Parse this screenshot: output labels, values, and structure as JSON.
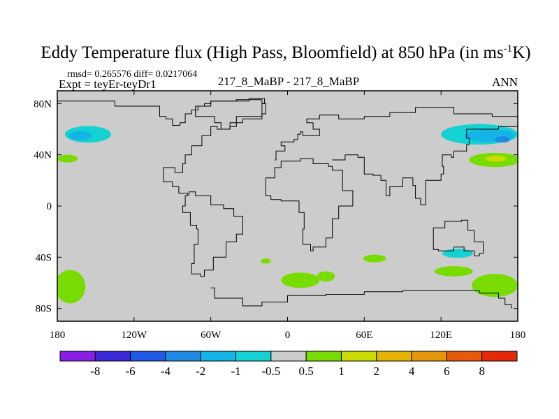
{
  "chart_data": {
    "type": "heatmap",
    "title": "Eddy Temperature flux (High Pass, Bloomfield) at 850 hPa (in ms",
    "title_superscript": "-1",
    "title_suffix": "K)",
    "stats_text": "rmsd= 0.265576  diff= 0.0217064",
    "left_label": "Expt = teyEr-teyDr1",
    "center_label": "217_8_MaBP - 217_8_MaBP",
    "right_label": "ANN",
    "x_ticks": [
      "180",
      "120W",
      "60W",
      "0",
      "60E",
      "120E",
      "180"
    ],
    "x_tick_values": [
      -180,
      -120,
      -60,
      0,
      60,
      120,
      180
    ],
    "y_ticks": [
      "80N",
      "40N",
      "0",
      "40S",
      "80S"
    ],
    "y_tick_values": [
      80,
      40,
      0,
      -40,
      -80
    ],
    "xlim": [
      -180,
      180
    ],
    "ylim": [
      -90,
      90
    ],
    "colorbar": {
      "labels": [
        "-8",
        "-6",
        "-4",
        "-2",
        "-1",
        "-0.5",
        "0.5",
        "1",
        "2",
        "4",
        "6",
        "8"
      ],
      "colors": [
        "#8a1ee6",
        "#3c28d7",
        "#1e5ae6",
        "#1e8ce6",
        "#14b4e6",
        "#14d2d2",
        "#cccccc",
        "#78dc00",
        "#c8dc00",
        "#e6b400",
        "#e6960a",
        "#e65a0a",
        "#e6280a"
      ]
    },
    "background_value_range": [
      -0.5,
      0.5
    ],
    "regions": [
      {
        "name": "north-pacific-west-cyan",
        "bin": "-1 to -0.5",
        "color": "#14d2d2",
        "lon": -156,
        "lat": 56,
        "dlon": 18,
        "dlat": 6.5
      },
      {
        "name": "north-pacific-west-blue",
        "bin": "-2 to -1",
        "color": "#14b4e6",
        "lon": -162,
        "lat": 55,
        "dlon": 9,
        "dlat": 3.5
      },
      {
        "name": "north-pacific-west-green",
        "bin": "0.5 to 1",
        "color": "#78dc00",
        "lon": -172,
        "lat": 37,
        "dlon": 8,
        "dlat": 3
      },
      {
        "name": "north-pacific-east-cyan",
        "bin": "-1 to -0.5",
        "color": "#14d2d2",
        "lon": 150,
        "lat": 56,
        "dlon": 30,
        "dlat": 8
      },
      {
        "name": "north-pacific-east-blue",
        "bin": "-2 to -1",
        "color": "#14b4e6",
        "lon": 158,
        "lat": 55,
        "dlon": 20,
        "dlat": 5
      },
      {
        "name": "north-pacific-east-core",
        "bin": "-4 to -2",
        "color": "#1e8ce6",
        "lon": 168,
        "lat": 52,
        "dlon": 6,
        "dlat": 2.5
      },
      {
        "name": "north-pacific-east-green",
        "bin": "0.5 to 1",
        "color": "#78dc00",
        "lon": 162,
        "lat": 36,
        "dlon": 20,
        "dlat": 5.5
      },
      {
        "name": "north-pacific-east-yellow",
        "bin": "1 to 2",
        "color": "#c8dc00",
        "lon": 163,
        "lat": 37,
        "dlon": 8,
        "dlat": 2.5
      },
      {
        "name": "south-pacific-west-green",
        "bin": "0.5 to 1",
        "color": "#78dc00",
        "lon": -170,
        "lat": -63,
        "dlon": 12,
        "dlat": 13
      },
      {
        "name": "south-atlantic-green-1",
        "bin": "0.5 to 1",
        "color": "#78dc00",
        "lon": -17,
        "lat": -43,
        "dlon": 4,
        "dlat": 2
      },
      {
        "name": "south-atlantic-green-2",
        "bin": "0.5 to 1",
        "color": "#78dc00",
        "lon": 10,
        "lat": -58,
        "dlon": 15,
        "dlat": 6
      },
      {
        "name": "south-atlantic-green-3",
        "bin": "0.5 to 1",
        "color": "#78dc00",
        "lon": 30,
        "lat": -55,
        "dlon": 7,
        "dlat": 4
      },
      {
        "name": "south-indian-green",
        "bin": "0.5 to 1",
        "color": "#78dc00",
        "lon": 68,
        "lat": -41,
        "dlon": 9,
        "dlat": 3
      },
      {
        "name": "south-indian-cyan",
        "bin": "-1 to -0.5",
        "color": "#14d2d2",
        "lon": 133,
        "lat": -37,
        "dlon": 12,
        "dlat": 3.5
      },
      {
        "name": "south-pacific-east-green-1",
        "bin": "0.5 to 1",
        "color": "#78dc00",
        "lon": 130,
        "lat": -51,
        "dlon": 15,
        "dlat": 4
      },
      {
        "name": "south-pacific-east-green-2",
        "bin": "0.5 to 1",
        "color": "#78dc00",
        "lon": 162,
        "lat": -62,
        "dlon": 18,
        "dlat": 9
      }
    ],
    "coastlines": [
      {
        "name": "north-america-outline",
        "points": [
          [
            -180,
            82
          ],
          [
            -135,
            82
          ],
          [
            -135,
            78
          ],
          [
            -100,
            78
          ],
          [
            -100,
            70
          ],
          [
            -95,
            68
          ],
          [
            -90,
            63
          ],
          [
            -84,
            65
          ],
          [
            -80,
            72
          ],
          [
            -75,
            75
          ],
          [
            -70,
            78
          ],
          [
            -65,
            80
          ],
          [
            -60,
            82
          ],
          [
            -40,
            83
          ],
          [
            -20,
            80
          ],
          [
            -17,
            72
          ],
          [
            -20,
            68
          ],
          [
            -35,
            65
          ],
          [
            -45,
            60
          ],
          [
            -55,
            62
          ],
          [
            -60,
            55
          ],
          [
            -67,
            47
          ],
          [
            -75,
            40
          ],
          [
            -80,
            33
          ],
          [
            -82,
            26
          ],
          [
            -88,
            30
          ],
          [
            -97,
            26
          ],
          [
            -97,
            19
          ],
          [
            -90,
            15
          ],
          [
            -85,
            10
          ],
          [
            -78,
            8
          ]
        ]
      },
      {
        "name": "south-america-outline",
        "points": [
          [
            -78,
            8
          ],
          [
            -80,
            0
          ],
          [
            -82,
            -5
          ],
          [
            -76,
            -15
          ],
          [
            -71,
            -18
          ],
          [
            -70,
            -30
          ],
          [
            -73,
            -45
          ],
          [
            -75,
            -53
          ],
          [
            -68,
            -55
          ],
          [
            -65,
            -50
          ],
          [
            -58,
            -40
          ],
          [
            -48,
            -28
          ],
          [
            -40,
            -22
          ],
          [
            -35,
            -8
          ],
          [
            -42,
            -2
          ],
          [
            -50,
            1
          ],
          [
            -60,
            8
          ],
          [
            -72,
            11
          ],
          [
            -77,
            8
          ]
        ]
      },
      {
        "name": "africa-outline",
        "points": [
          [
            -17,
            15
          ],
          [
            -17,
            22
          ],
          [
            -10,
            30
          ],
          [
            -5,
            35
          ],
          [
            10,
            37
          ],
          [
            20,
            33
          ],
          [
            32,
            31
          ],
          [
            35,
            28
          ],
          [
            43,
            12
          ],
          [
            51,
            11
          ],
          [
            51,
            0
          ],
          [
            40,
            -10
          ],
          [
            35,
            -25
          ],
          [
            30,
            -32
          ],
          [
            20,
            -35
          ],
          [
            18,
            -30
          ],
          [
            12,
            -18
          ],
          [
            13,
            -5
          ],
          [
            9,
            4
          ],
          [
            -5,
            5
          ],
          [
            -13,
            8
          ],
          [
            -17,
            15
          ]
        ]
      },
      {
        "name": "eurasia-outline",
        "points": [
          [
            -10,
            36
          ],
          [
            -9,
            43
          ],
          [
            -2,
            47
          ],
          [
            -5,
            50
          ],
          [
            5,
            52
          ],
          [
            8,
            56
          ],
          [
            10,
            58
          ],
          [
            12,
            55
          ],
          [
            20,
            55
          ],
          [
            25,
            60
          ],
          [
            20,
            65
          ],
          [
            15,
            68
          ],
          [
            25,
            71
          ],
          [
            40,
            68
          ],
          [
            60,
            70
          ],
          [
            80,
            73
          ],
          [
            100,
            77
          ],
          [
            130,
            72
          ],
          [
            160,
            70
          ],
          [
            180,
            67
          ]
        ]
      },
      {
        "name": "asia-south-outline",
        "points": [
          [
            35,
            36
          ],
          [
            45,
            40
          ],
          [
            55,
            38
          ],
          [
            60,
            25
          ],
          [
            67,
            24
          ],
          [
            73,
            20
          ],
          [
            77,
            8
          ],
          [
            80,
            15
          ],
          [
            90,
            22
          ],
          [
            98,
            16
          ],
          [
            100,
            6
          ],
          [
            104,
            1
          ],
          [
            108,
            12
          ],
          [
            108,
            20
          ],
          [
            120,
            25
          ],
          [
            122,
            31
          ],
          [
            121,
            40
          ],
          [
            128,
            38
          ],
          [
            130,
            43
          ],
          [
            140,
            48
          ],
          [
            142,
            53
          ],
          [
            140,
            60
          ],
          [
            160,
            60
          ],
          [
            165,
            62
          ],
          [
            180,
            66
          ]
        ]
      },
      {
        "name": "australia-outline",
        "points": [
          [
            114,
            -22
          ],
          [
            114,
            -34
          ],
          [
            118,
            -35
          ],
          [
            130,
            -32
          ],
          [
            138,
            -35
          ],
          [
            146,
            -39
          ],
          [
            150,
            -37
          ],
          [
            153,
            -28
          ],
          [
            146,
            -19
          ],
          [
            141,
            -11
          ],
          [
            136,
            -12
          ],
          [
            130,
            -12
          ],
          [
            123,
            -17
          ],
          [
            114,
            -22
          ]
        ]
      },
      {
        "name": "greenland-outline",
        "points": [
          [
            -72,
            78
          ],
          [
            -60,
            82
          ],
          [
            -30,
            84
          ],
          [
            -18,
            80
          ],
          [
            -20,
            70
          ],
          [
            -40,
            62
          ],
          [
            -45,
            60
          ],
          [
            -52,
            65
          ],
          [
            -57,
            70
          ],
          [
            -72,
            78
          ]
        ]
      },
      {
        "name": "antarctic-outline",
        "points": [
          [
            -60,
            -64
          ],
          [
            -57,
            -72
          ],
          [
            -35,
            -78
          ],
          [
            -20,
            -75
          ],
          [
            0,
            -70
          ],
          [
            30,
            -69
          ],
          [
            60,
            -67
          ],
          [
            90,
            -66
          ],
          [
            120,
            -66
          ],
          [
            150,
            -68
          ],
          [
            165,
            -72
          ],
          [
            170,
            -77
          ],
          [
            175,
            -80
          ]
        ]
      }
    ]
  }
}
